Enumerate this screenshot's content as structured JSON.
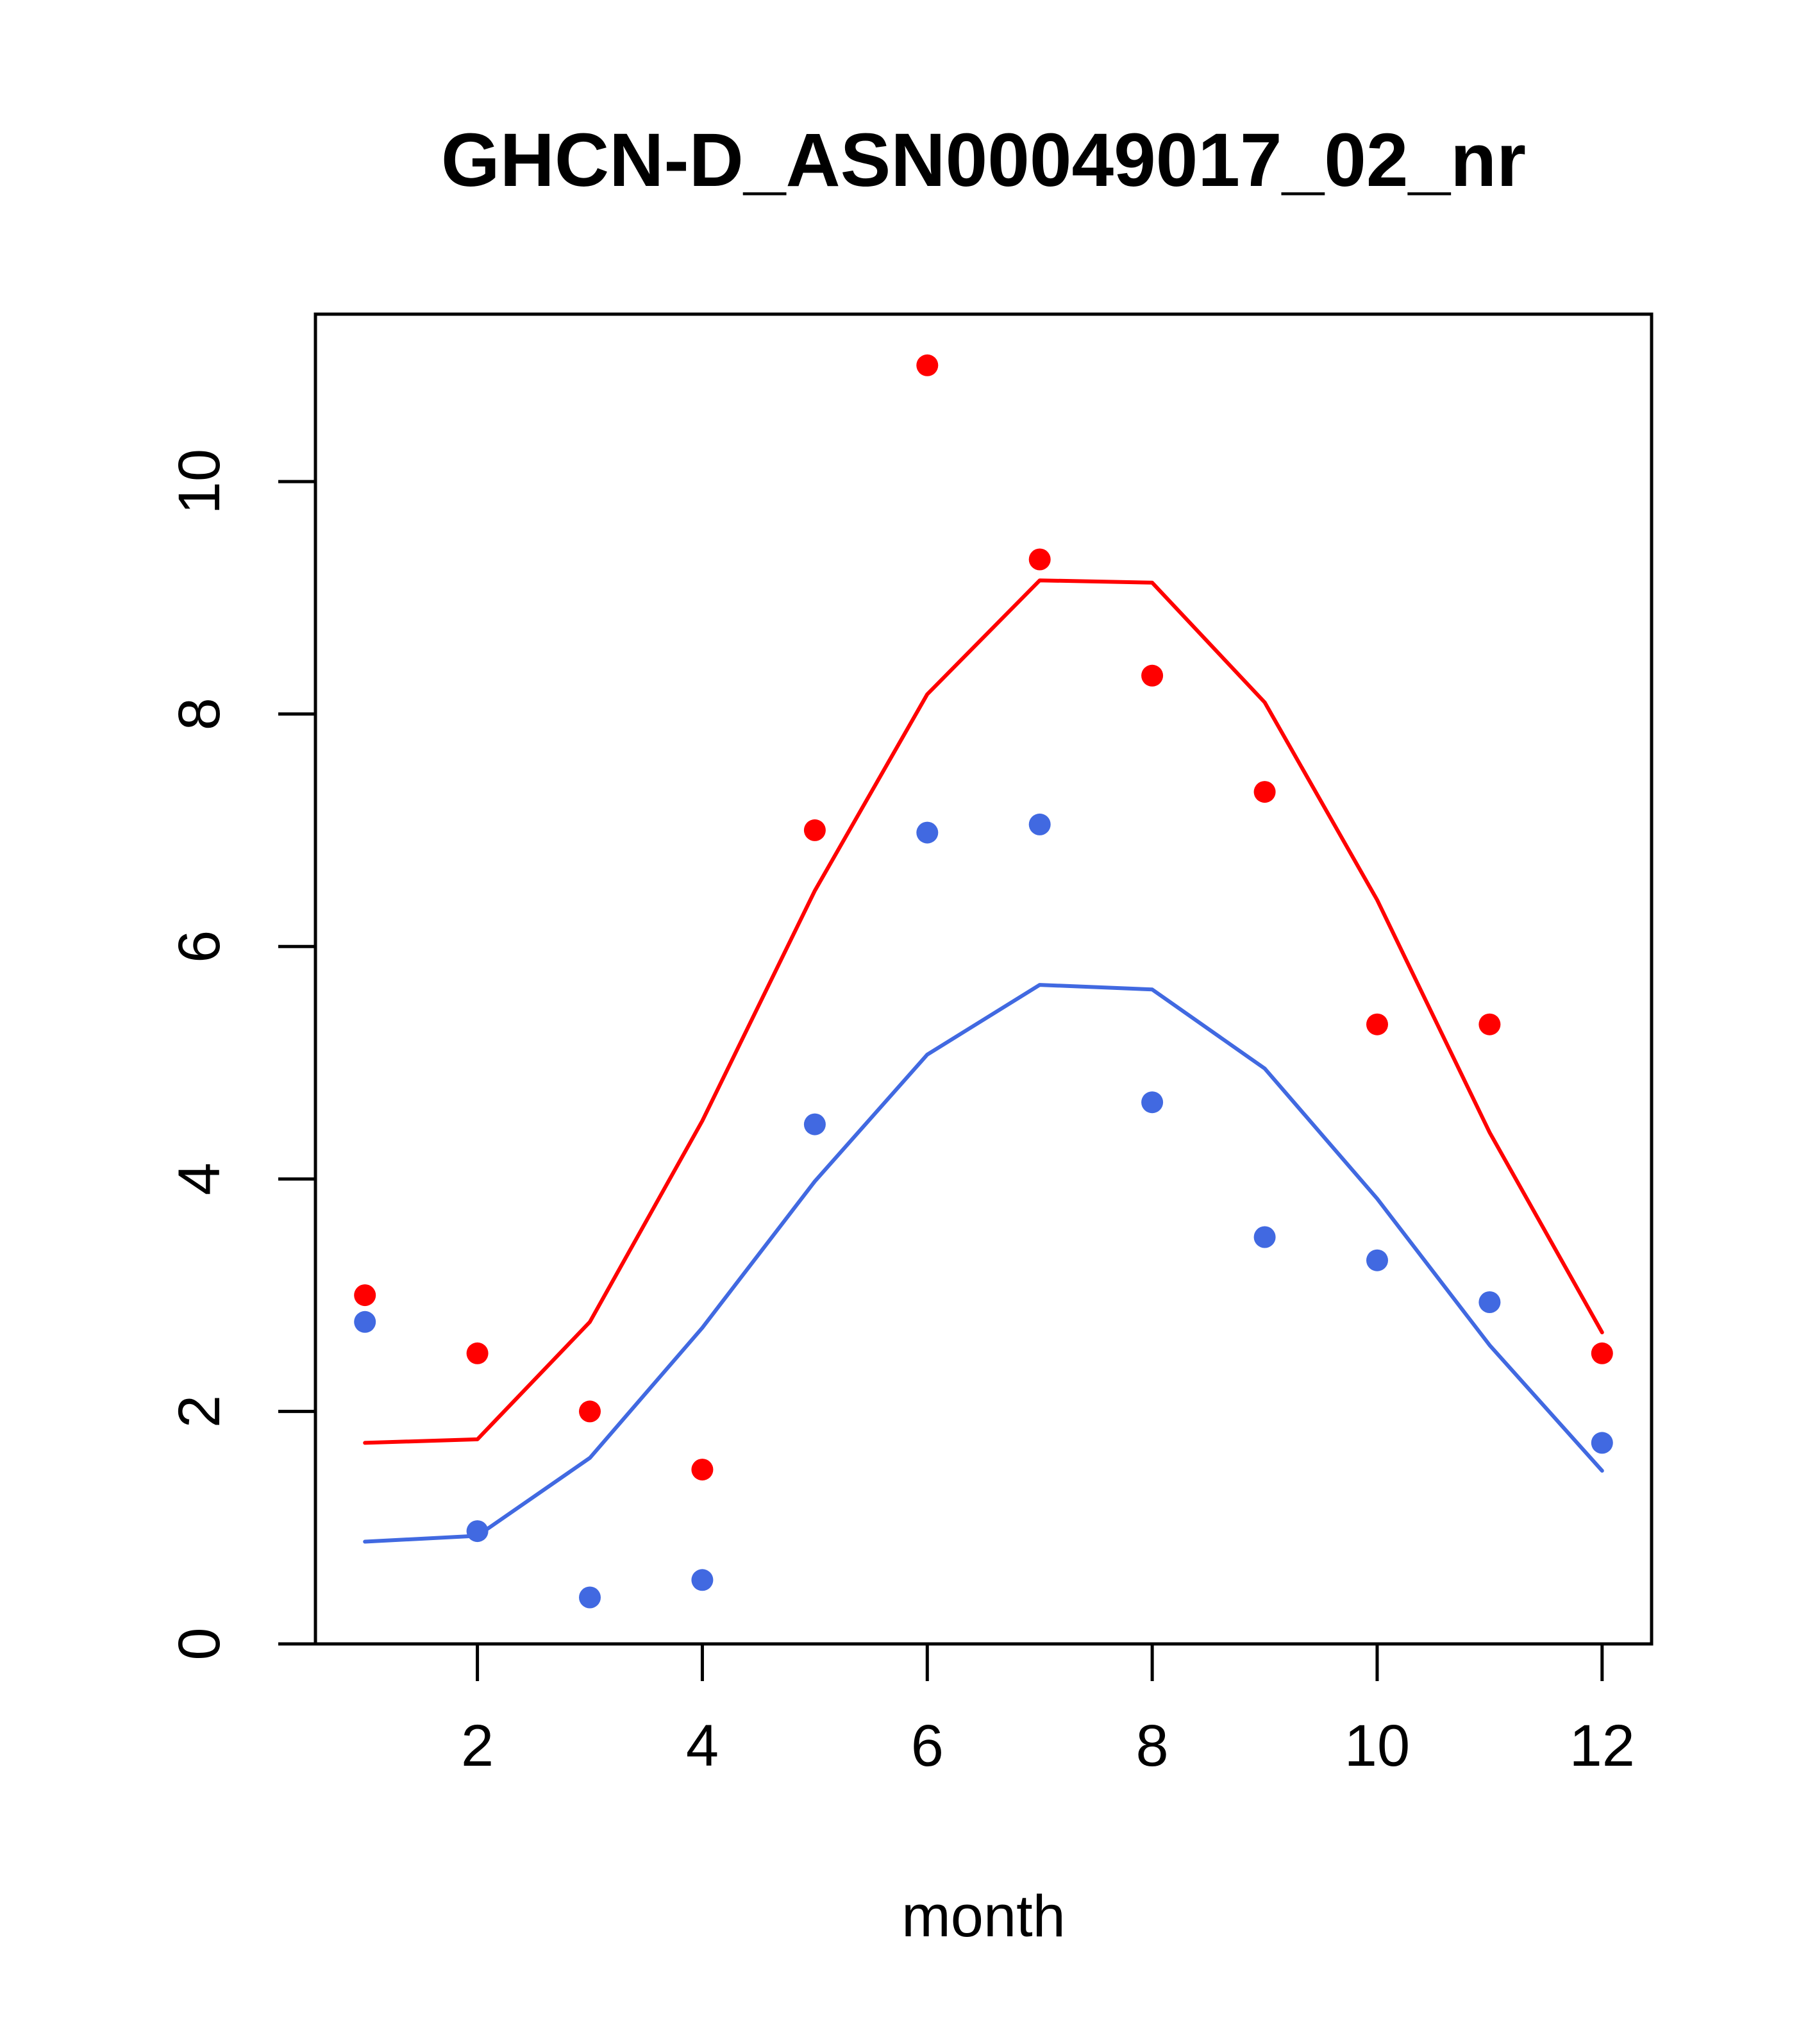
{
  "chart_data": {
    "type": "scatter",
    "title": "GHCN-D_ASN00049017_02_nr",
    "xlabel": "month",
    "ylabel": "",
    "xlim": [
      0.56,
      12.44
    ],
    "ylim": [
      0,
      11.44
    ],
    "x_ticks": [
      2,
      4,
      6,
      8,
      10,
      12
    ],
    "y_ticks": [
      0,
      2,
      4,
      6,
      8,
      10
    ],
    "grid": false,
    "legend": "none",
    "series": [
      {
        "kind": "points",
        "color": "#ff0000",
        "x": [
          1,
          2,
          3,
          4,
          5,
          6,
          7,
          8,
          9,
          10,
          11,
          12
        ],
        "y": [
          3.0,
          2.5,
          2.0,
          1.5,
          7.0,
          11.0,
          9.33,
          8.33,
          7.33,
          5.33,
          5.33,
          2.5
        ]
      },
      {
        "kind": "points",
        "color": "#4169e1",
        "x": [
          1,
          2,
          3,
          4,
          5,
          6,
          7,
          8,
          9,
          10,
          11,
          12
        ],
        "y": [
          2.77,
          0.97,
          0.4,
          0.55,
          4.47,
          6.98,
          7.05,
          4.66,
          3.5,
          3.3,
          2.94,
          1.73
        ]
      },
      {
        "kind": "line",
        "color": "#ff0000",
        "x": [
          1,
          2,
          3,
          4,
          5,
          6,
          7,
          8,
          9,
          10,
          11,
          12
        ],
        "y": [
          1.73,
          1.76,
          2.77,
          4.5,
          6.48,
          8.17,
          9.15,
          9.13,
          8.1,
          6.4,
          4.4,
          2.68
        ]
      },
      {
        "kind": "line",
        "color": "#4169e1",
        "x": [
          1,
          2,
          3,
          4,
          5,
          6,
          7,
          8,
          9,
          10,
          11,
          12
        ],
        "y": [
          0.88,
          0.93,
          1.6,
          2.72,
          3.98,
          5.07,
          5.67,
          5.63,
          4.95,
          3.83,
          2.57,
          1.49
        ]
      }
    ]
  }
}
